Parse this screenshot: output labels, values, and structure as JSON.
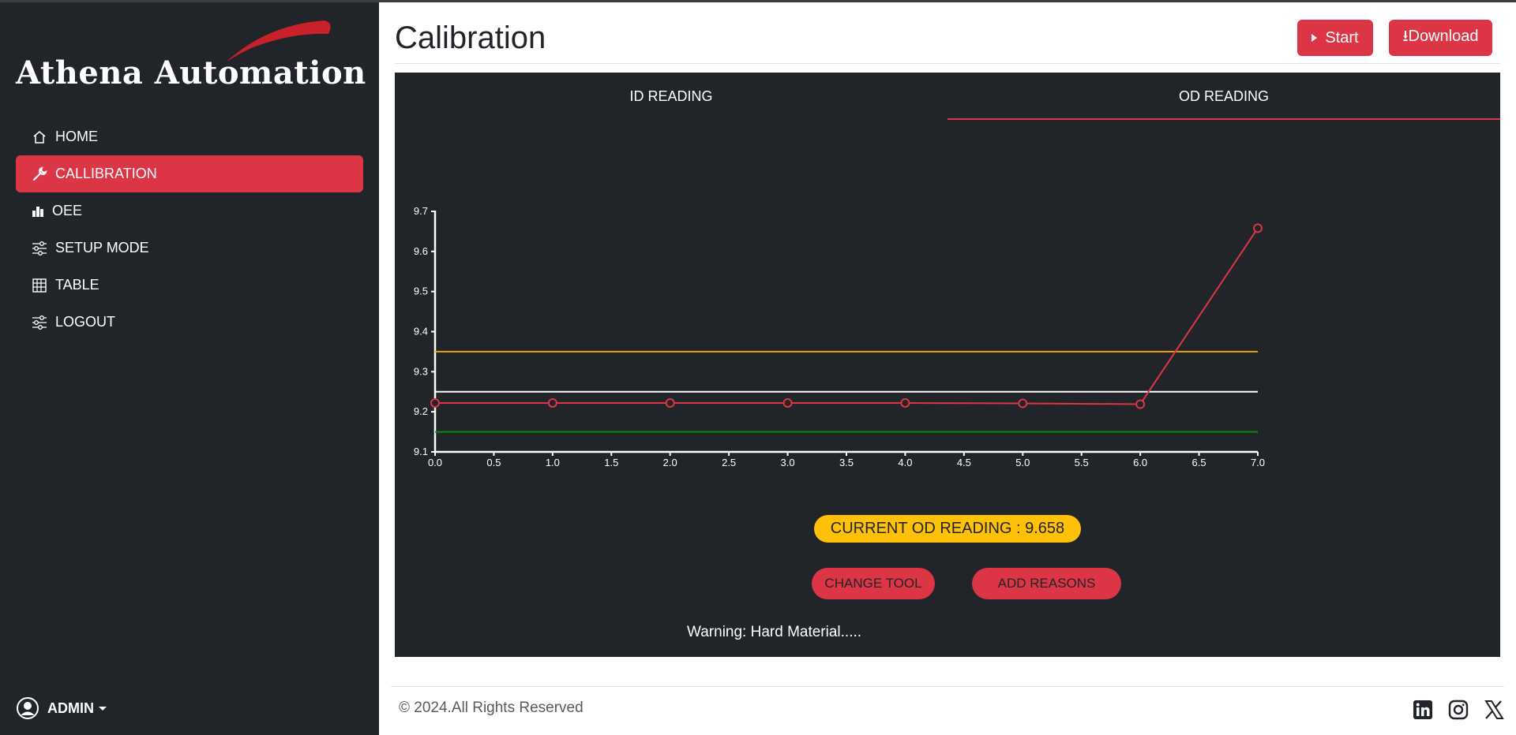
{
  "brand": {
    "name": "Athena Automation",
    "accent": "#dc3545",
    "swoosh": "#c8212b"
  },
  "sidebar": {
    "items": [
      {
        "label": "HOME",
        "icon": "home-icon",
        "active": false
      },
      {
        "label": "CALLIBRATION",
        "icon": "wrench-icon",
        "active": true
      },
      {
        "label": "OEE",
        "icon": "bar-chart-icon",
        "active": false
      },
      {
        "label": "SETUP MODE",
        "icon": "sliders-icon",
        "active": false
      },
      {
        "label": "TABLE",
        "icon": "table-icon",
        "active": false
      },
      {
        "label": "LOGOUT",
        "icon": "sliders-icon",
        "active": false
      }
    ],
    "user": {
      "label": "ADMIN",
      "icon": "user-circle-icon"
    }
  },
  "header": {
    "title": "Calibration",
    "start_label": "Start",
    "download_label": "⭳Download"
  },
  "tabs": [
    {
      "label": "ID READING",
      "active": false
    },
    {
      "label": "OD READING",
      "active": true
    }
  ],
  "chart_data": {
    "type": "line",
    "x": [
      0,
      1,
      2,
      3,
      4,
      5,
      6,
      7
    ],
    "series": [
      {
        "values": [
          9.222,
          9.222,
          9.222,
          9.222,
          9.222,
          9.221,
          9.219,
          9.658
        ],
        "color": "#dc3545"
      }
    ],
    "reference_lines": [
      {
        "y": 9.35,
        "color": "#f0a500"
      },
      {
        "y": 9.25,
        "color": "#ffffff"
      },
      {
        "y": 9.15,
        "color": "#0a8a0a"
      }
    ],
    "xlim": [
      0,
      7
    ],
    "ylim": [
      9.1,
      9.7
    ],
    "xticks": [
      "0.0",
      "0.5",
      "1.0",
      "1.5",
      "2.0",
      "2.5",
      "3.0",
      "3.5",
      "4.0",
      "4.5",
      "5.0",
      "5.5",
      "6.0",
      "6.5",
      "7.0"
    ],
    "yticks": [
      "9.1",
      "9.2",
      "9.3",
      "9.4",
      "9.5",
      "9.6",
      "9.7"
    ],
    "grid": false
  },
  "reading": {
    "label": "CURRENT OD READING",
    "separator": " : ",
    "value": "9.658"
  },
  "actions": {
    "change_tool": "CHANGE TOOL",
    "add_reasons": "ADD REASONS"
  },
  "warning": "Warning: Hard Material.....",
  "footer": {
    "copyright": "© 2024.All Rights Reserved",
    "social": [
      "linkedin-icon",
      "instagram-icon",
      "x-icon"
    ]
  }
}
